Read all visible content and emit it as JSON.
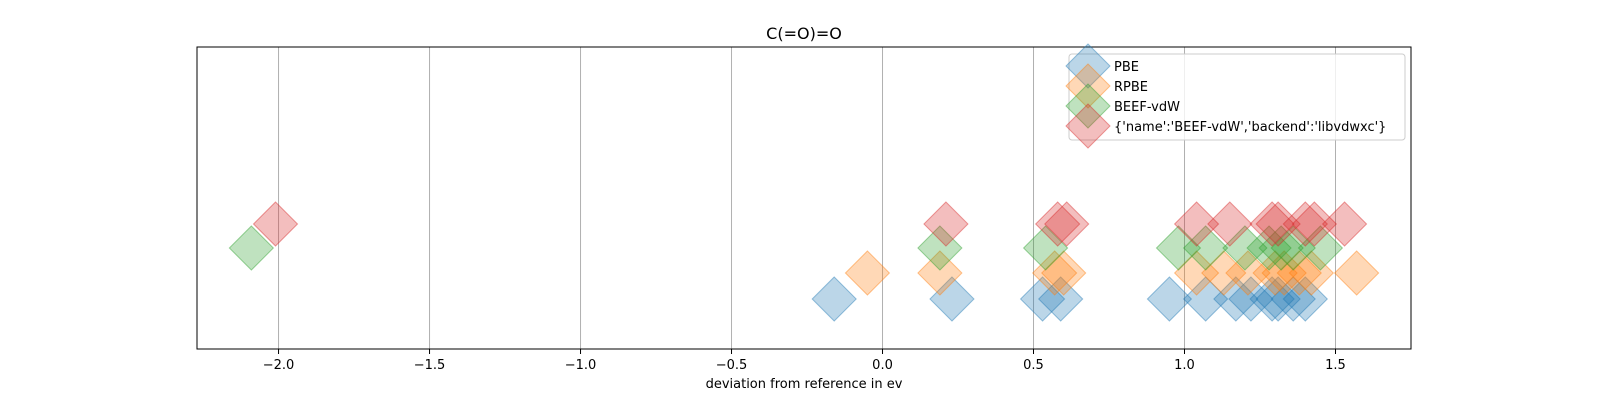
{
  "chart_data": {
    "type": "scatter",
    "title": "C(=O)=O",
    "xlabel": "deviation from reference in ev",
    "ylabel": "",
    "xlim": [
      -2.27,
      1.75
    ],
    "xticks": [
      -2.0,
      -1.5,
      -1.0,
      -0.5,
      0.0,
      0.5,
      1.0,
      1.5
    ],
    "xtick_labels": [
      "−2.0",
      "−1.5",
      "−1.0",
      "−0.5",
      "0.0",
      "0.5",
      "1.0",
      "1.5"
    ],
    "grid": "vertical",
    "yticks_visible": false,
    "marker": "diamond",
    "legend_position": "top-right",
    "series": [
      {
        "name": "PBE",
        "color": "#1f77b4",
        "x": [
          -0.16,
          0.23,
          0.53,
          0.59,
          0.95,
          1.07,
          1.17,
          1.22,
          1.29,
          1.31,
          1.36,
          1.4
        ]
      },
      {
        "name": "RPBE",
        "color": "#ff7f0e",
        "x": [
          -0.05,
          0.19,
          0.57,
          0.6,
          1.04,
          1.13,
          1.21,
          1.3,
          1.33,
          1.38,
          1.42,
          1.57
        ]
      },
      {
        "name": "BEEF-vdW",
        "color": "#2ca02c",
        "x": [
          -2.09,
          0.19,
          0.54,
          0.98,
          1.07,
          1.2,
          1.28,
          1.32,
          1.36,
          1.45
        ]
      },
      {
        "name": "{'name':'BEEF-vdW','backend':'libvdwxc'}",
        "color": "#d62728",
        "x": [
          -2.01,
          0.21,
          0.58,
          0.61,
          1.04,
          1.15,
          1.29,
          1.31,
          1.4,
          1.43,
          1.53
        ]
      }
    ]
  }
}
